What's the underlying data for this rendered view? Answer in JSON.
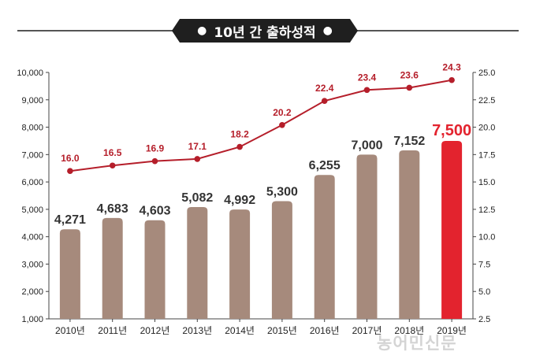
{
  "title": "10년 간 출하성적",
  "watermark": "농어민신문",
  "colors": {
    "bar": "#a68a7c",
    "bar_highlight": "#e3232e",
    "line": "#b51e2a",
    "bar_label": "#333333",
    "line_label": "#b51e2a",
    "title_bg": "#1f1f1f"
  },
  "chart_data": {
    "type": "bar",
    "title": "10년 간 출하성적",
    "categories": [
      "2010년",
      "2011년",
      "2012년",
      "2013년",
      "2014년",
      "2015년",
      "2016년",
      "2017년",
      "2018년",
      "2019년"
    ],
    "series": [
      {
        "type": "bar",
        "axis": "left",
        "values": [
          4271,
          4683,
          4603,
          5082,
          4992,
          5300,
          6255,
          7000,
          7152,
          7500
        ],
        "labels": [
          "4,271",
          "4,683",
          "4,603",
          "5,082",
          "4,992",
          "5,300",
          "6,255",
          "7,000",
          "7,152",
          "7,500"
        ],
        "highlight_index": 9
      },
      {
        "type": "line",
        "axis": "right",
        "values": [
          16.0,
          16.5,
          16.9,
          17.1,
          18.2,
          20.2,
          22.4,
          23.4,
          23.6,
          24.3
        ],
        "labels": [
          "16.0",
          "16.5",
          "16.9",
          "17.1",
          "18.2",
          "20.2",
          "22.4",
          "23.4",
          "23.6",
          "24.3"
        ]
      }
    ],
    "y_left": {
      "range": [
        1000,
        10000
      ],
      "ticks": [
        1000,
        2000,
        3000,
        4000,
        5000,
        6000,
        7000,
        8000,
        9000,
        10000
      ],
      "tick_labels": [
        "1,000",
        "2,000",
        "3,000",
        "4,000",
        "5,000",
        "6,000",
        "7,000",
        "8,000",
        "9,000",
        "10,000"
      ]
    },
    "y_right": {
      "range": [
        2.5,
        25.0
      ],
      "ticks": [
        2.5,
        5.0,
        7.5,
        10.0,
        12.5,
        15.0,
        17.5,
        20.0,
        22.5,
        25.0
      ],
      "tick_labels": [
        "2.5",
        "5.0",
        "7.5",
        "10.0",
        "12.5",
        "15.0",
        "17.5",
        "20.0",
        "22.5",
        "25.0"
      ]
    },
    "grid": false,
    "legend": "none"
  }
}
